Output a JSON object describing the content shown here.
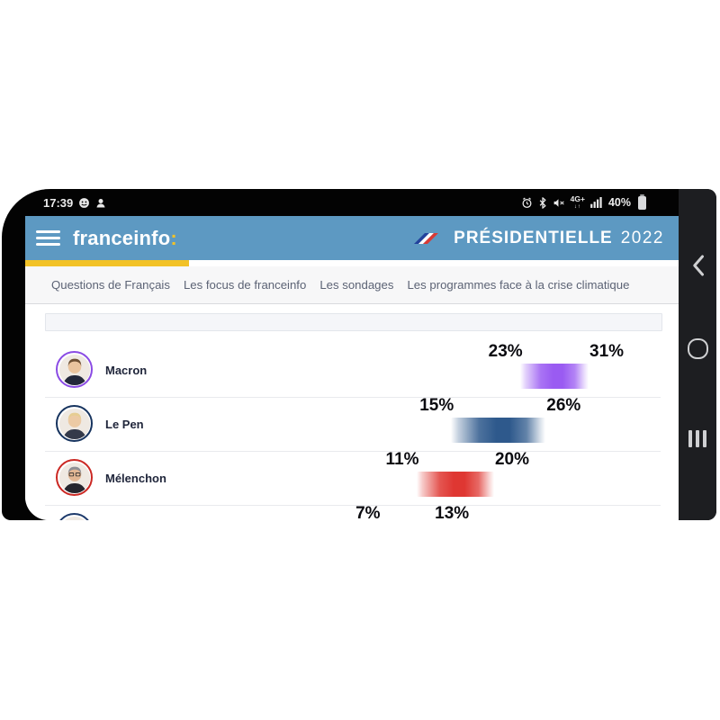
{
  "status_bar": {
    "time": "17:39",
    "notification_icons": [
      "smiley-icon",
      "person-icon"
    ],
    "right_icons": [
      "alarm-icon",
      "bluetooth-icon",
      "mute-icon",
      "network-4g-icon",
      "signal-icon",
      "battery-icon"
    ],
    "network_label": "4G+",
    "network_arrows": "↓↑",
    "battery_percent": "40%"
  },
  "header": {
    "menu_icon": "hamburger-icon",
    "logo_text": "franceinfo",
    "logo_colon": ":",
    "flag_icon": "french-flag-icon",
    "banner_title": "PRÉSIDENTIELLE",
    "banner_year": "2022",
    "colors": {
      "header_bg": "#5d99c2",
      "accent_yellow": "#f2c227"
    }
  },
  "nav": {
    "tabs": [
      {
        "label": "Questions de Français"
      },
      {
        "label": "Les focus de franceinfo"
      },
      {
        "label": "Les sondages"
      },
      {
        "label": "Les programmes face à la crise climatique"
      }
    ]
  },
  "poll_chart": {
    "type": "range-bar",
    "unit": "%",
    "candidates": [
      {
        "name": "Macron",
        "low": 23,
        "high": 31,
        "low_label": "23%",
        "high_label": "31%",
        "bar_color": "#9a5bf2",
        "ring_color": "#8a4be4",
        "avatar": {
          "hair": "#6d4f33",
          "skin": "#eac49e",
          "suit": "#23283a",
          "glasses": false
        }
      },
      {
        "name": "Le Pen",
        "low": 15,
        "high": 26,
        "low_label": "15%",
        "high_label": "26%",
        "bar_color": "#2e598c",
        "ring_color": "#16335e",
        "avatar": {
          "hair": "#e6cd92",
          "skin": "#eccaa4",
          "suit": "#343a4a",
          "glasses": false
        }
      },
      {
        "name": "Mélenchon",
        "low": 11,
        "high": 20,
        "low_label": "11%",
        "high_label": "20%",
        "bar_color": "#df3732",
        "ring_color": "#cb2823",
        "avatar": {
          "hair": "#8e8e94",
          "skin": "#e2b794",
          "suit": "#26262e",
          "glasses": true
        }
      },
      {
        "name": "",
        "low": 7,
        "high": 13,
        "low_label": "7%",
        "high_label": "13%",
        "bar_color": "#c0c4cc",
        "ring_color": "#1d3a6b",
        "avatar": {
          "hair": "#97979b",
          "skin": "#dfbc9b",
          "suit": "#3a3f4c",
          "glasses": false
        }
      }
    ]
  },
  "android_nav": {
    "back": "back-button",
    "home": "home-button",
    "recents": "recents-button"
  }
}
